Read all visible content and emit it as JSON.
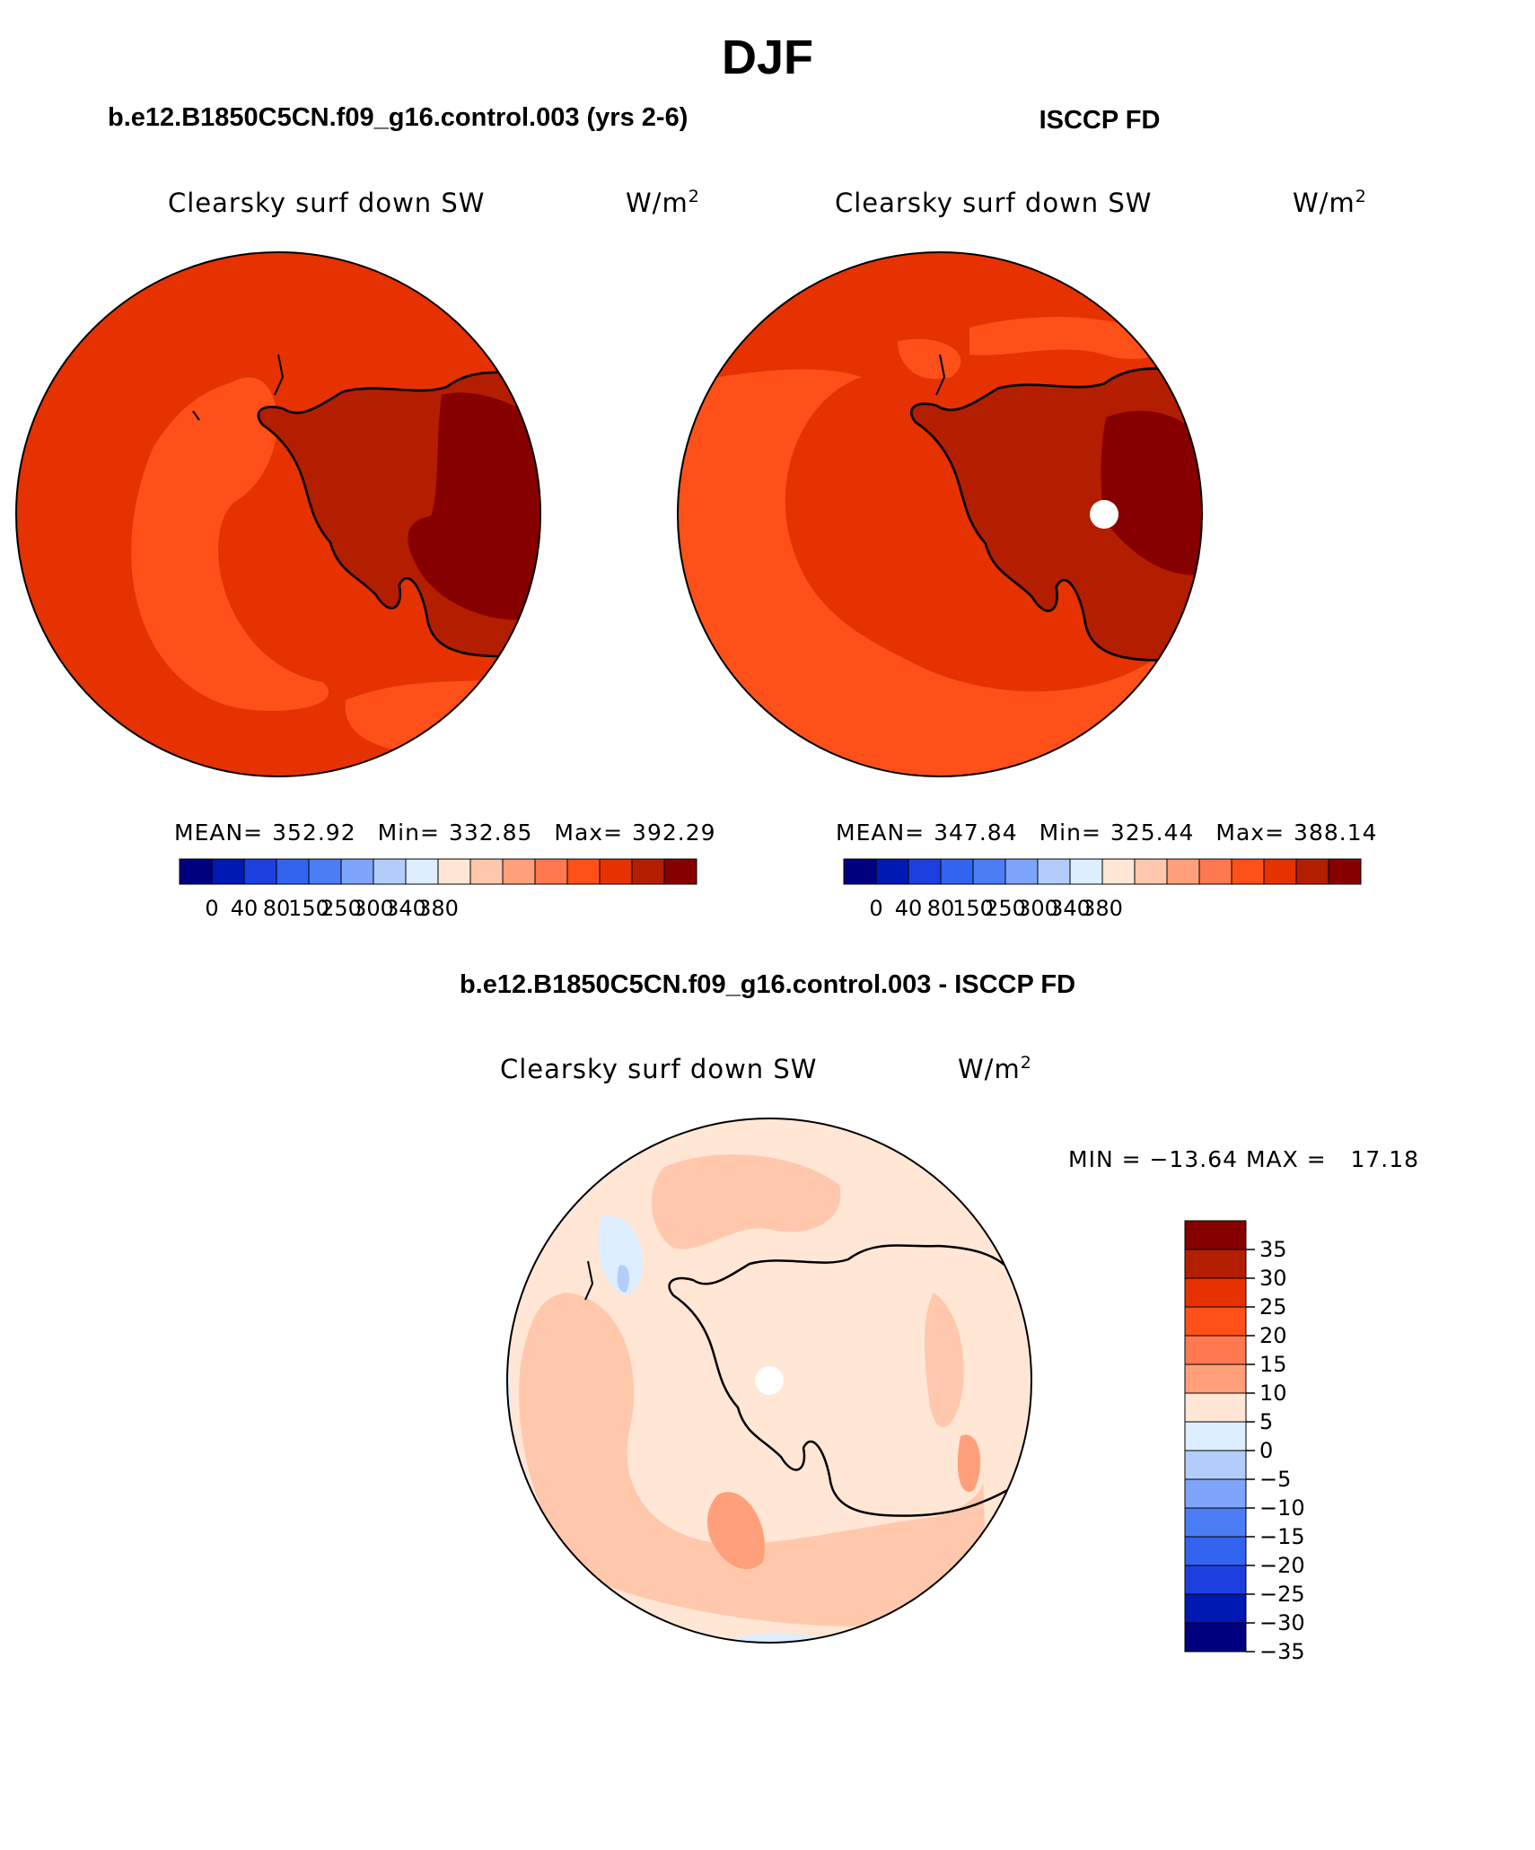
{
  "figure": {
    "season": "DJF",
    "left_title": "b.e12.B1850C5CN.f09_g16.control.003 (yrs 2-6)",
    "right_title": "ISCCP FD",
    "diff_title": "b.e12.B1850C5CN.f09_g16.control.003 - ISCCP FD"
  },
  "colors": {
    "abs_levels": [
      "#00007f",
      "#0019b2",
      "#1d3fe0",
      "#3264f0",
      "#4b7df5",
      "#7fa5fa",
      "#b2cdfa",
      "#dceeff",
      "#ffe6d5",
      "#ffc8ac",
      "#ffa07a",
      "#ff7850",
      "#ff5019",
      "#e63200",
      "#b41e00",
      "#870000"
    ],
    "diff_levels": [
      "#870000",
      "#b41e00",
      "#e63200",
      "#ff5019",
      "#ff7850",
      "#ffa07a",
      "#ffe6d5",
      "#dceeff",
      "#b2cdfa",
      "#7fa5fa",
      "#4b7df5",
      "#3264f0",
      "#1d3fe0",
      "#0019b2",
      "#00007f"
    ],
    "coast": "#000000"
  },
  "panels": {
    "model": {
      "variable": "Clearsky surf down SW",
      "units": "W/m",
      "units_sup": "2",
      "mean_label": "MEAN=",
      "mean": "352.92",
      "min_label": "Min=",
      "min": "332.85",
      "max_label": "Max=",
      "max": "392.29",
      "colorbar_ticks": [
        "0",
        "40",
        "80",
        "150",
        "250",
        "300",
        "340",
        "380"
      ]
    },
    "obs": {
      "variable": "Clearsky surf down SW",
      "units": "W/m",
      "units_sup": "2",
      "mean_label": "MEAN=",
      "mean": "347.84",
      "min_label": "Min=",
      "min": "325.44",
      "max_label": "Max=",
      "max": "388.14",
      "colorbar_ticks": [
        "0",
        "40",
        "80",
        "150",
        "250",
        "300",
        "340",
        "380"
      ]
    },
    "diff": {
      "variable": "Clearsky surf down SW",
      "units": "W/m",
      "units_sup": "2",
      "minmax_text": "MIN = −13.64 MAX =   17.18",
      "colorbar_ticks": [
        "35",
        "30",
        "25",
        "20",
        "15",
        "10",
        "5",
        "0",
        "−5",
        "−10",
        "−15",
        "−20",
        "−25",
        "−30",
        "−35"
      ]
    }
  }
}
